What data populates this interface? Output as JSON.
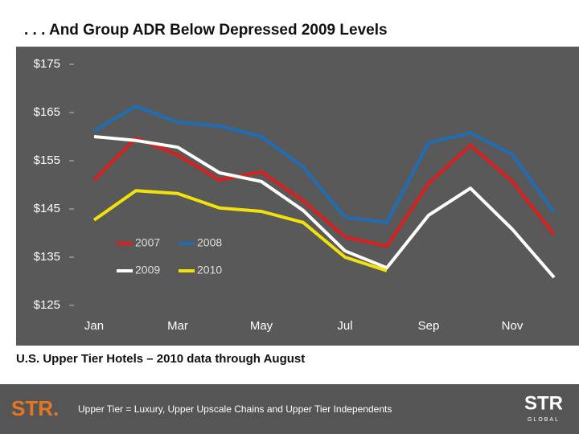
{
  "chart_data": {
    "type": "line",
    "title": ". . . And Group ADR Below Depressed 2009 Levels",
    "subtitle": "U.S. Upper Tier Hotels – 2010 data through August",
    "categories": [
      "Jan",
      null,
      "Mar",
      null,
      "May",
      null,
      "Jul",
      null,
      "Sep",
      null,
      "Nov",
      null
    ],
    "series": [
      {
        "name": "2007",
        "color": "#d9201f",
        "values": [
          151,
          159.7,
          156.2,
          151,
          152.7,
          146.7,
          139.2,
          137.3,
          150.3,
          158.2,
          150.7,
          139.7
        ]
      },
      {
        "name": "2008",
        "color": "#1f6db5",
        "values": [
          161.2,
          166.3,
          163,
          162.2,
          160,
          153.7,
          143.3,
          142.2,
          158.7,
          160.8,
          156.3,
          144.3
        ]
      },
      {
        "name": "2009",
        "color": "#ffffff",
        "values": [
          160,
          159.2,
          157.8,
          152.5,
          150.7,
          144.7,
          136.3,
          132.8,
          143.7,
          149.3,
          140.8,
          130.8
        ]
      },
      {
        "name": "2010",
        "color": "#f2e20a",
        "values": [
          142.7,
          148.8,
          148.2,
          145.2,
          144.5,
          142.2,
          135,
          132.2,
          null,
          null,
          null,
          null
        ]
      }
    ],
    "ylim": [
      125,
      175
    ],
    "yticks": [
      {
        "value": 125,
        "label": "$125"
      },
      {
        "value": 135,
        "label": "$135"
      },
      {
        "value": 145,
        "label": "$145"
      },
      {
        "value": 155,
        "label": "$155"
      },
      {
        "value": 165,
        "label": "$165"
      },
      {
        "value": 175,
        "label": "$175"
      }
    ]
  },
  "footer": {
    "logo_left": "STR.",
    "note": "Upper Tier = Luxury, Upper Upscale Chains and Upper Tier Independents",
    "logo_right": "STR",
    "logo_right_sub": "GLOBAL"
  }
}
